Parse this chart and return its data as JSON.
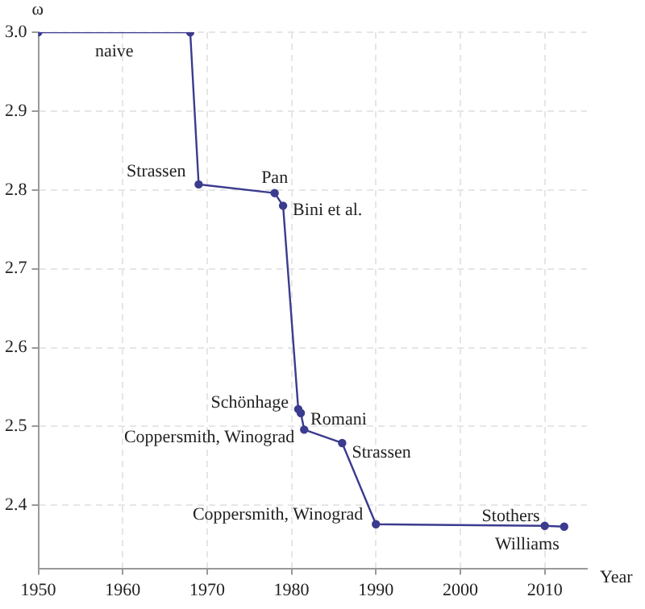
{
  "chart_data": {
    "type": "line",
    "xlabel": "Year",
    "ylabel": "ω",
    "x": [
      1950,
      1968,
      1969,
      1978,
      1979,
      1980.8,
      1981.1,
      1981.5,
      1986,
      1990,
      2010,
      2012.3
    ],
    "series": [
      {
        "color": "#3b3b8f",
        "values": [
          3.0,
          3.0,
          2.807,
          2.796,
          2.78,
          2.522,
          2.517,
          2.496,
          2.479,
          2.376,
          2.374,
          2.373
        ]
      }
    ],
    "xlim": [
      1950,
      2015
    ],
    "xticks": [
      1950,
      1960,
      1970,
      1980,
      1990,
      2000,
      2010
    ],
    "ylim": [
      2.32,
      3.0
    ],
    "yticks": [
      {
        "value": 2.4,
        "label": "2.4"
      },
      {
        "value": 2.5,
        "label": "2.5"
      },
      {
        "value": 2.6,
        "label": "2.6"
      },
      {
        "value": 2.7,
        "label": "2.7"
      },
      {
        "value": 2.8,
        "label": "2.8"
      },
      {
        "value": 2.9,
        "label": "2.9"
      },
      {
        "value": 3.0,
        "label": "3.0"
      }
    ],
    "grid": true,
    "marker": "circle",
    "line_style": "solid",
    "annotations": [
      {
        "text": "naive",
        "x": 1959,
        "y": 3.0
      },
      {
        "text": "Strassen",
        "x": 1969,
        "y": 2.807
      },
      {
        "text": "Pan",
        "x": 1978,
        "y": 2.796
      },
      {
        "text": "Bini et al.",
        "x": 1979,
        "y": 2.78
      },
      {
        "text": "Schönhage",
        "x": 1980.8,
        "y": 2.522
      },
      {
        "text": "Romani",
        "x": 1981.1,
        "y": 2.517
      },
      {
        "text": "Coppersmith, Winograd",
        "x": 1981.5,
        "y": 2.496
      },
      {
        "text": "Strassen",
        "x": 1986,
        "y": 2.479
      },
      {
        "text": "Coppersmith, Winograd",
        "x": 1990,
        "y": 2.376
      },
      {
        "text": "Stothers",
        "x": 2010,
        "y": 2.374
      },
      {
        "text": "Williams",
        "x": 2012.3,
        "y": 2.373
      }
    ]
  }
}
